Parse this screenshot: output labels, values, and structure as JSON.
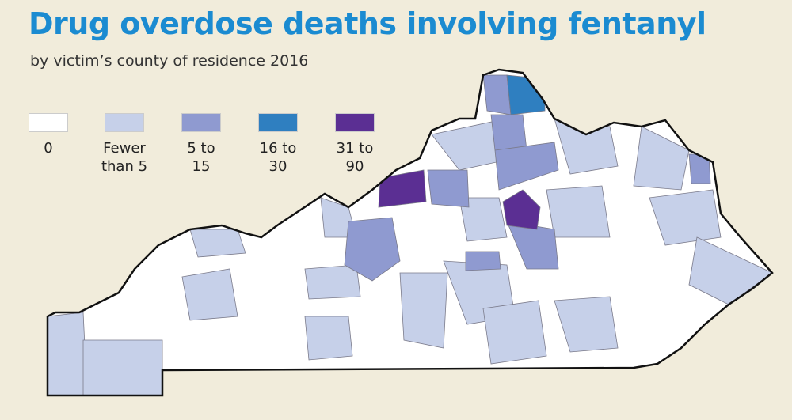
{
  "header": {
    "title": "Drug overdose deaths involving fentanyl",
    "subtitle": "by victim’s county of residence 2016"
  },
  "legend": [
    {
      "label": "0",
      "color": "#ffffff"
    },
    {
      "label": "Fewer than 5",
      "color": "#c6d0e9"
    },
    {
      "label": "5 to 15",
      "color": "#8f9ad0"
    },
    {
      "label": "16 to 30",
      "color": "#2f7fc0"
    },
    {
      "label": "31 to 90",
      "color": "#5b2f93"
    }
  ]
}
